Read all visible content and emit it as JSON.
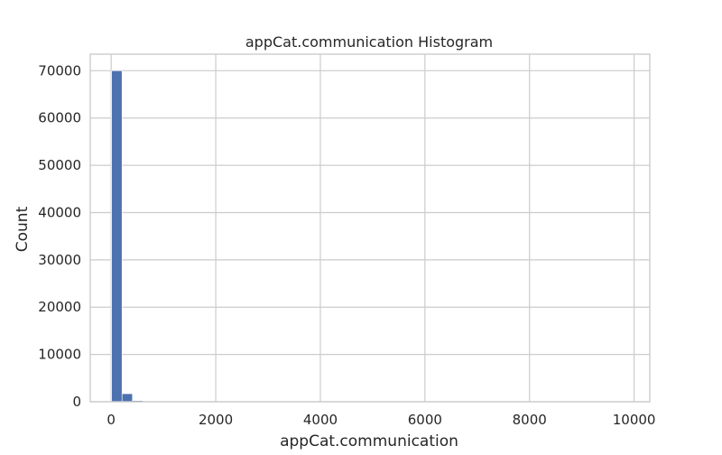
{
  "chart_data": {
    "type": "bar",
    "title": "appCat.communication Histogram",
    "xlabel": "appCat.communication",
    "ylabel": "Count",
    "xlim": [
      -400,
      10300
    ],
    "ylim": [
      0,
      73500
    ],
    "xticks": [
      0,
      2000,
      4000,
      6000,
      8000,
      10000
    ],
    "yticks": [
      0,
      10000,
      20000,
      30000,
      40000,
      50000,
      60000,
      70000
    ],
    "grid": true,
    "bins": [
      {
        "x0": 9,
        "x1": 208,
        "count": 70000
      },
      {
        "x0": 208,
        "x1": 407,
        "count": 1700
      },
      {
        "x0": 407,
        "x1": 606,
        "count": 250
      },
      {
        "x0": 606,
        "x1": 805,
        "count": 90
      },
      {
        "x0": 805,
        "x1": 1004,
        "count": 40
      },
      {
        "x0": 1004,
        "x1": 1203,
        "count": 20
      },
      {
        "x0": 1203,
        "x1": 1402,
        "count": 10
      }
    ],
    "colors": {
      "bar": "#4c72b0",
      "grid": "#cccccc",
      "spine": "#cccccc",
      "text": "#262626"
    }
  }
}
